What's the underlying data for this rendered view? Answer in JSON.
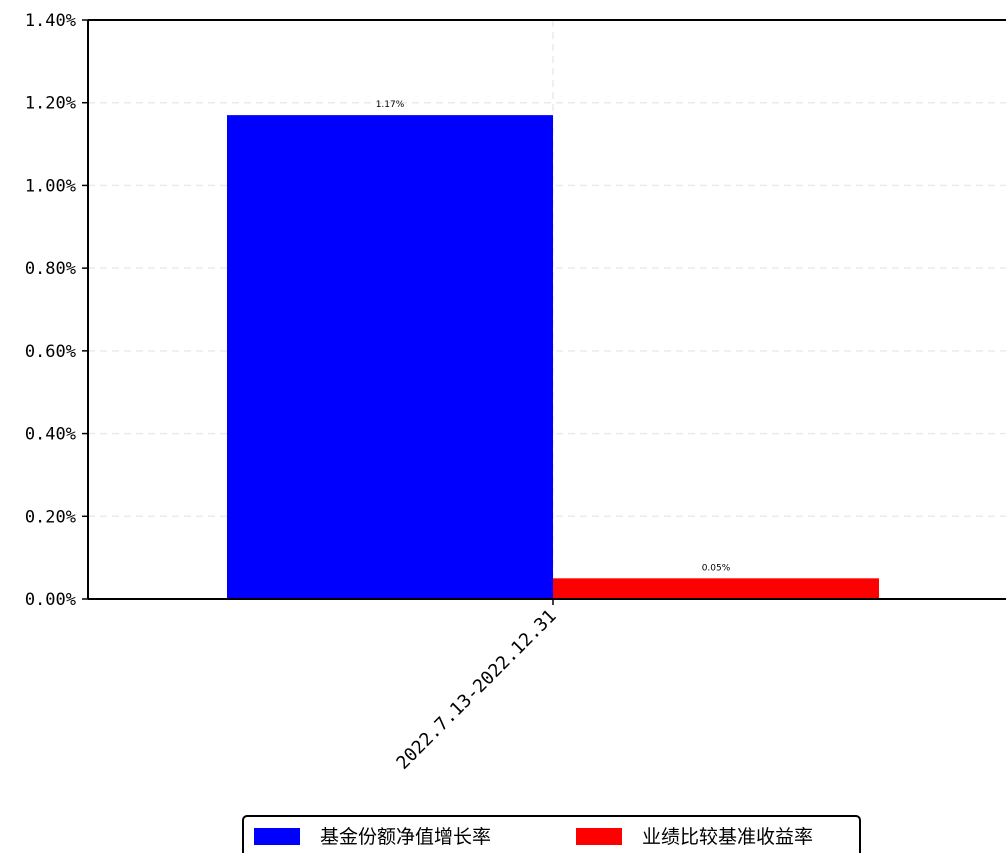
{
  "chart_data": {
    "type": "bar",
    "categories": [
      "2022.7.13-2022.12.31"
    ],
    "series": [
      {
        "name": "基金份额净值增长率",
        "values": [
          1.17
        ],
        "color": "#0000ff"
      },
      {
        "name": "业绩比较基准收益率",
        "values": [
          0.05
        ],
        "color": "#ff0000"
      }
    ],
    "data_labels": [
      "1.17%",
      "0.05%"
    ],
    "ylim": [
      0,
      1.4
    ],
    "yticks": [
      0,
      0.2,
      0.4,
      0.6,
      0.8,
      1.0,
      1.2,
      1.4
    ],
    "ytick_labels": [
      "0.00%",
      "0.20%",
      "0.40%",
      "0.60%",
      "0.80%",
      "1.00%",
      "1.20%",
      "1.40%"
    ],
    "xtick_labels": [
      "2022.7.13-2022.12.31"
    ],
    "grid": true,
    "legend_position": "bottom-center",
    "title": "",
    "xlabel": "",
    "ylabel": ""
  }
}
